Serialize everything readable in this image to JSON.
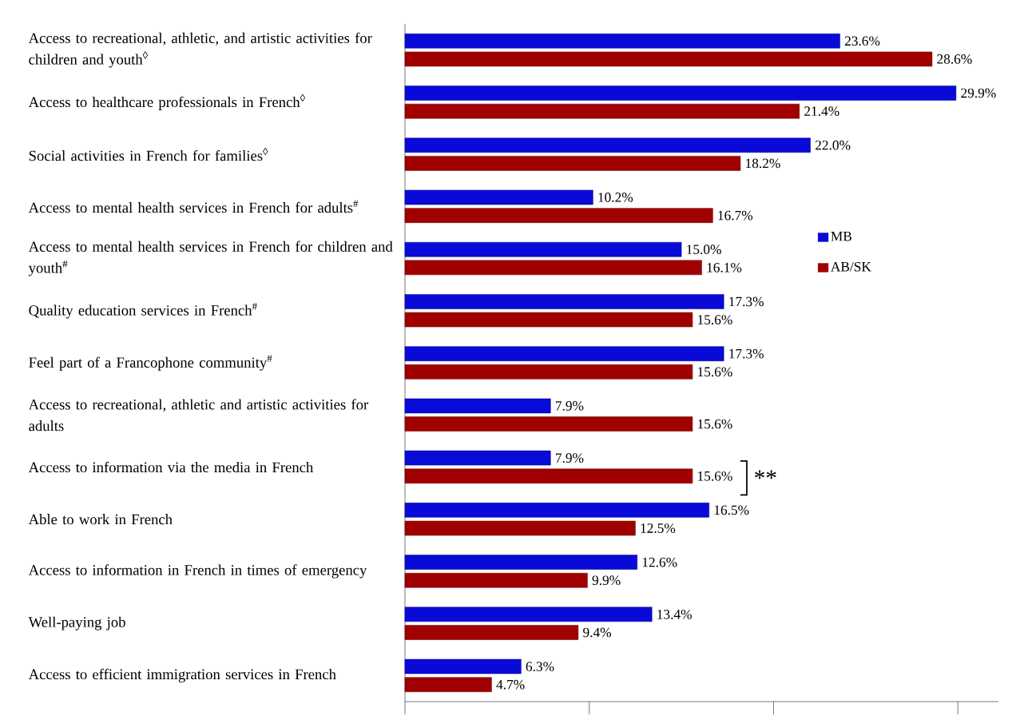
{
  "chart_data": {
    "type": "bar",
    "orientation": "horizontal",
    "categories": [
      "Access to recreational, athletic, and artistic activities for children and youth$^{◊}$",
      "Access to healthcare professionals in French$^{◊}$",
      "Social activities in French for families$^{◊}$",
      "Access to mental health services in French for adults$^{#}$",
      "Access to mental health services in French for children and youth$^{#}$",
      "Quality education services in French$^{#}$",
      "Feel part of a Francophone community$^{#}$",
      "Access to recreational, athletic and artistic activities for adults",
      "Access to information via the media in French",
      "Able to work in French",
      "Access to information in French in times of emergency",
      "Well-paying job",
      "Access to efficient immigration services in French"
    ],
    "series": [
      {
        "name": "MB",
        "color": "#0a0ad8",
        "values": [
          23.6,
          29.9,
          22.0,
          10.2,
          15.0,
          17.3,
          17.3,
          7.9,
          7.9,
          16.5,
          12.6,
          13.4,
          6.3
        ],
        "value_labels": [
          "23.6%",
          "29.9%",
          "22.0%",
          "10.2%",
          "15.0%",
          "17.3%",
          "17.3%",
          "7.9%",
          "7.9%",
          "16.5%",
          "12.6%",
          "13.4%",
          "6.3%"
        ]
      },
      {
        "name": "AB/SK",
        "color": "#a00000",
        "values": [
          28.6,
          21.4,
          18.2,
          16.7,
          16.1,
          15.6,
          15.6,
          15.6,
          15.6,
          12.5,
          9.9,
          9.4,
          4.7
        ],
        "value_labels": [
          "28.6%",
          "21.4%",
          "18.2%",
          "16.7%",
          "16.1%",
          "15.6%",
          "15.6%",
          "15.6%",
          "15.6%",
          "12.5%",
          "9.9%",
          "9.4%",
          "4.7%"
        ]
      }
    ],
    "xlim": [
      0,
      32.2
    ],
    "xticks": [
      {
        "value": 0,
        "label": null
      },
      {
        "value": 10,
        "label": null
      },
      {
        "value": 20,
        "label": null
      },
      {
        "value": 30,
        "label": null
      }
    ],
    "tick_labels": "y",
    "legend": "right",
    "annotations": [
      "**"
    ]
  }
}
